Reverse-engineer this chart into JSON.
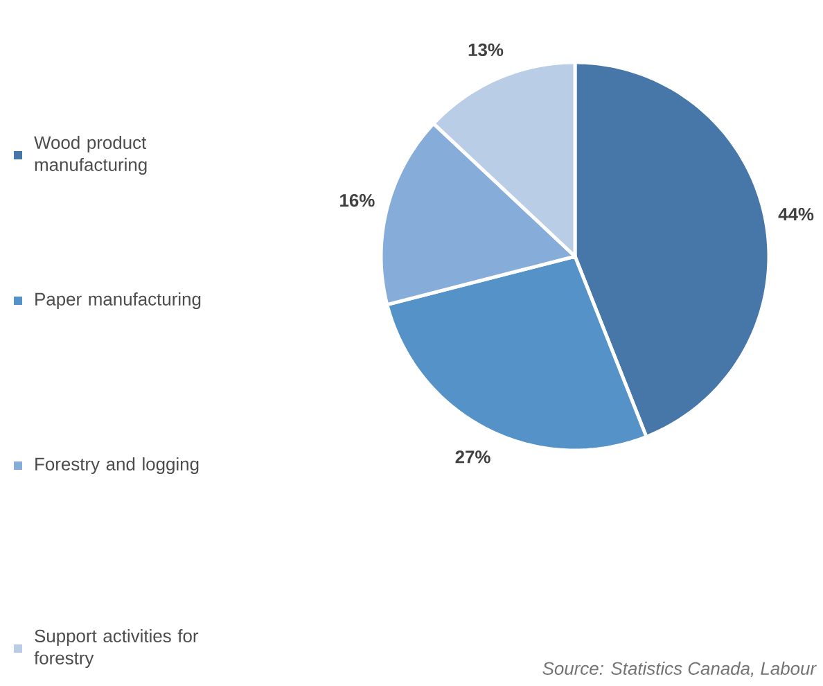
{
  "chart_data": {
    "type": "pie",
    "categories": [
      "Wood product manufacturing",
      "Paper manufacturing",
      "Forestry and logging",
      "Support activities for forestry"
    ],
    "values": [
      44,
      27,
      16,
      13
    ],
    "value_labels": [
      "44%",
      "27%",
      "16%",
      "13%"
    ],
    "colors": [
      "#4677a8",
      "#5592c8",
      "#86acd9",
      "#b9cde6"
    ],
    "legend": "left",
    "annotations": [
      "*Source: Statistics Canada, Labour*"
    ]
  }
}
